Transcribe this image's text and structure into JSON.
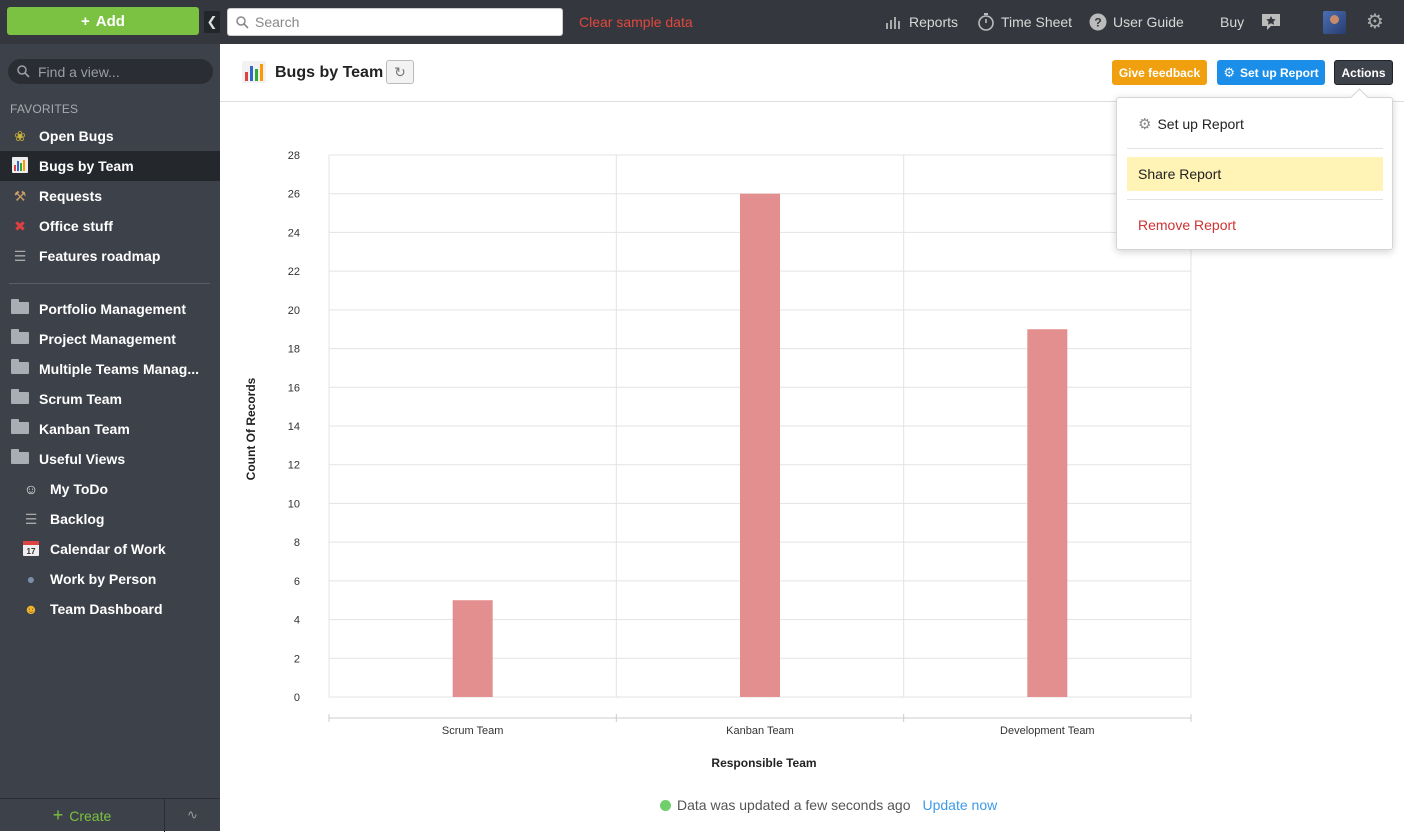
{
  "topbar": {
    "add_label": "Add",
    "search_placeholder": "Search",
    "clear_sample": "Clear sample data",
    "nav": [
      {
        "label": "Reports",
        "icon": "bar-chart-icon"
      },
      {
        "label": "Time Sheet",
        "icon": "stopwatch-icon"
      },
      {
        "label": "User Guide",
        "icon": "help-icon"
      },
      {
        "label": "Buy",
        "icon": "star-badge-icon"
      }
    ]
  },
  "sidebar": {
    "find_placeholder": "Find a view...",
    "favorites_heading": "FAVORITES",
    "favorites": [
      {
        "label": "Open Bugs",
        "icon": "bug-icon"
      },
      {
        "label": "Bugs by Team",
        "icon": "bar-chart-icon",
        "active": true
      },
      {
        "label": "Requests",
        "icon": "tools-icon"
      },
      {
        "label": "Office stuff",
        "icon": "pushpin-icon"
      },
      {
        "label": "Features roadmap",
        "icon": "roadmap-icon"
      }
    ],
    "folders": [
      {
        "label": "Portfolio Management"
      },
      {
        "label": "Project  Management"
      },
      {
        "label": "Multiple Teams Manag..."
      },
      {
        "label": "Scrum Team"
      },
      {
        "label": "Kanban Team"
      },
      {
        "label": "Useful Views"
      }
    ],
    "useful_views": [
      {
        "label": "My ToDo",
        "icon": "ghost-icon"
      },
      {
        "label": "Backlog",
        "icon": "list-icon"
      },
      {
        "label": "Calendar of Work",
        "icon": "calendar-icon"
      },
      {
        "label": "Work by Person",
        "icon": "person-icon"
      },
      {
        "label": "Team Dashboard",
        "icon": "team-icon"
      }
    ],
    "create_label": "Create"
  },
  "header": {
    "title": "Bugs by Team",
    "give_feedback": "Give feedback",
    "set_up_report": "Set up Report",
    "actions": "Actions"
  },
  "actions_menu": {
    "items": [
      {
        "label": "Set up Report"
      },
      {
        "label": "Share Report"
      },
      {
        "label": "Remove Report"
      }
    ]
  },
  "status": {
    "text": "Data was updated a few seconds ago",
    "link": "Update now"
  },
  "colors": {
    "bar": "#e48f8f",
    "accent_green": "#7cc242",
    "accent_blue": "#1a8ee8",
    "accent_orange": "#f0a00e",
    "danger": "#cf3232"
  },
  "chart_data": {
    "type": "bar",
    "categories": [
      "Scrum Team",
      "Kanban Team",
      "Development Team"
    ],
    "values": [
      5,
      26,
      19
    ],
    "xlabel": "Responsible Team",
    "ylabel": "Count Of Records",
    "ylim": [
      0,
      28
    ],
    "yticks": [
      0,
      2,
      4,
      6,
      8,
      10,
      12,
      14,
      16,
      18,
      20,
      22,
      24,
      26,
      28
    ],
    "grid": true
  }
}
